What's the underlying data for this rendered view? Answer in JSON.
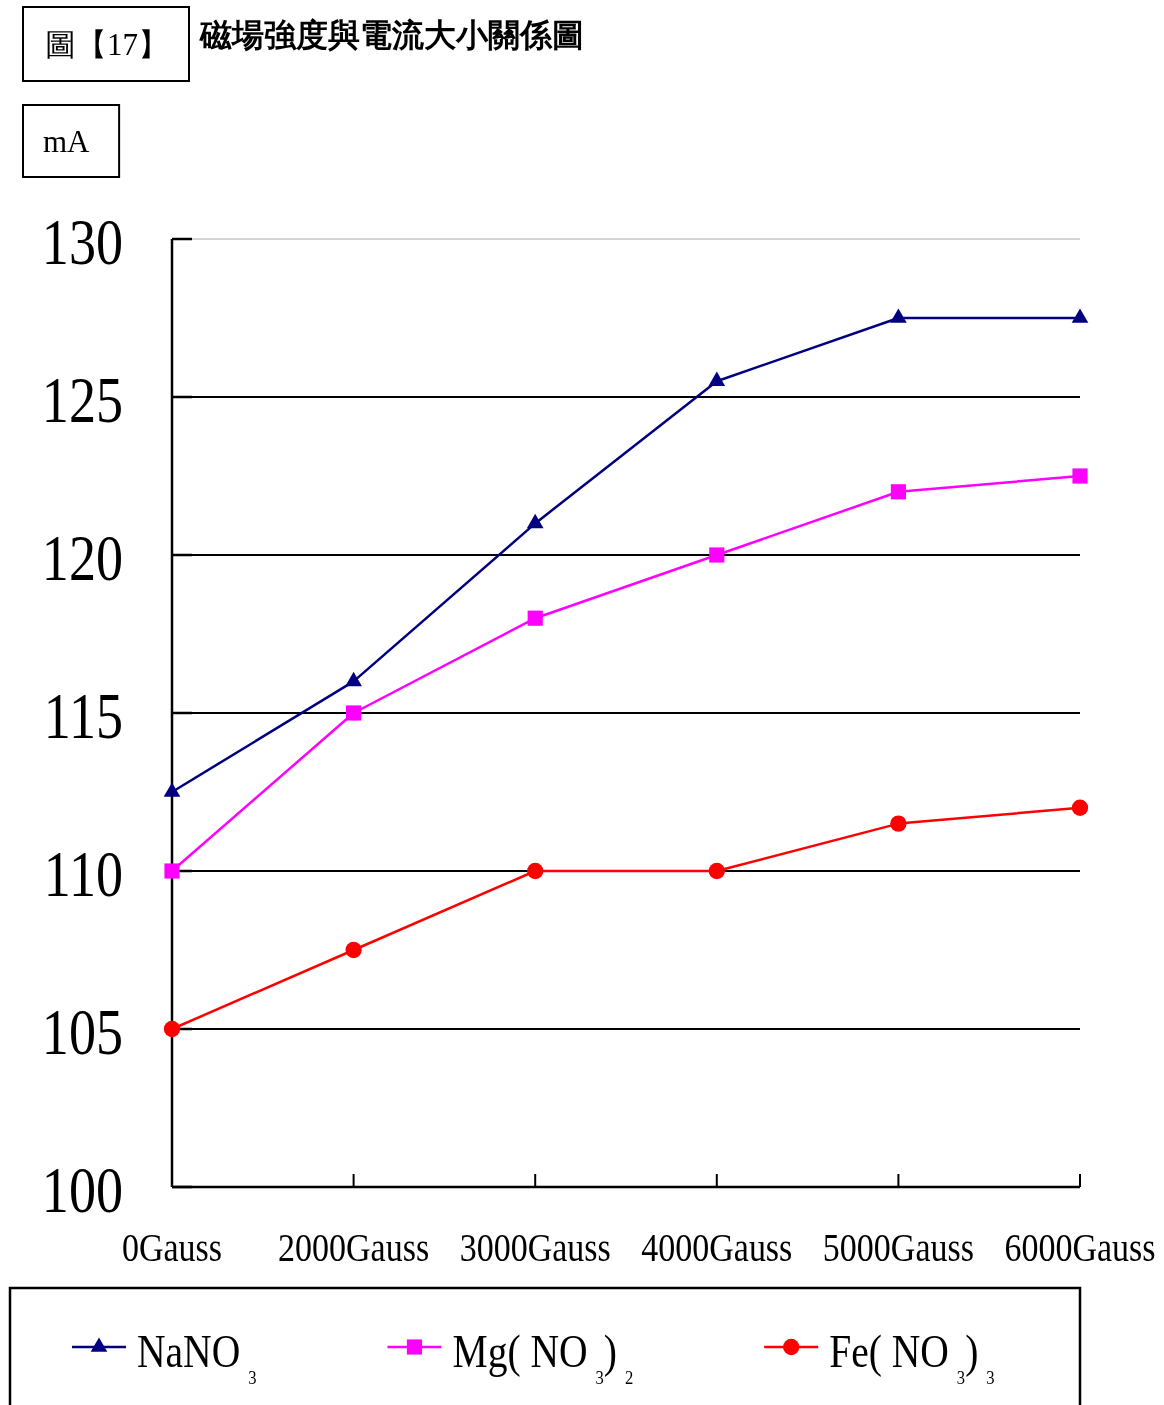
{
  "chart_data": {
    "type": "line",
    "title": "磁場強度與電流大小關係圖",
    "ylabel": "mA",
    "annotations": [
      "圖【17】"
    ],
    "categories": [
      "0Gauss",
      "2000Gauss",
      "3000Gauss",
      "4000Gauss",
      "5000Gauss",
      "6000Gauss"
    ],
    "series": [
      {
        "name": "NaNO$_{3}$",
        "color": "#000080",
        "marker": "triangle",
        "values": [
          112.5,
          116,
          121,
          125.5,
          127.5,
          127.5
        ]
      },
      {
        "name": "Mg( NO$_{3}$)$_{2}$",
        "color": "#ff00ff",
        "marker": "square",
        "values": [
          110,
          115,
          118,
          120,
          122,
          122.5
        ]
      },
      {
        "name": "Fe( NO$_{3}$)$_{3}$",
        "color": "#ff0000",
        "marker": "circle",
        "values": [
          105,
          107.5,
          110,
          110,
          111.5,
          112
        ]
      }
    ],
    "ylim": [
      100,
      130
    ],
    "yticks": [
      100,
      105,
      110,
      115,
      120,
      125,
      130
    ],
    "grid": "y",
    "legend": "bottom"
  }
}
